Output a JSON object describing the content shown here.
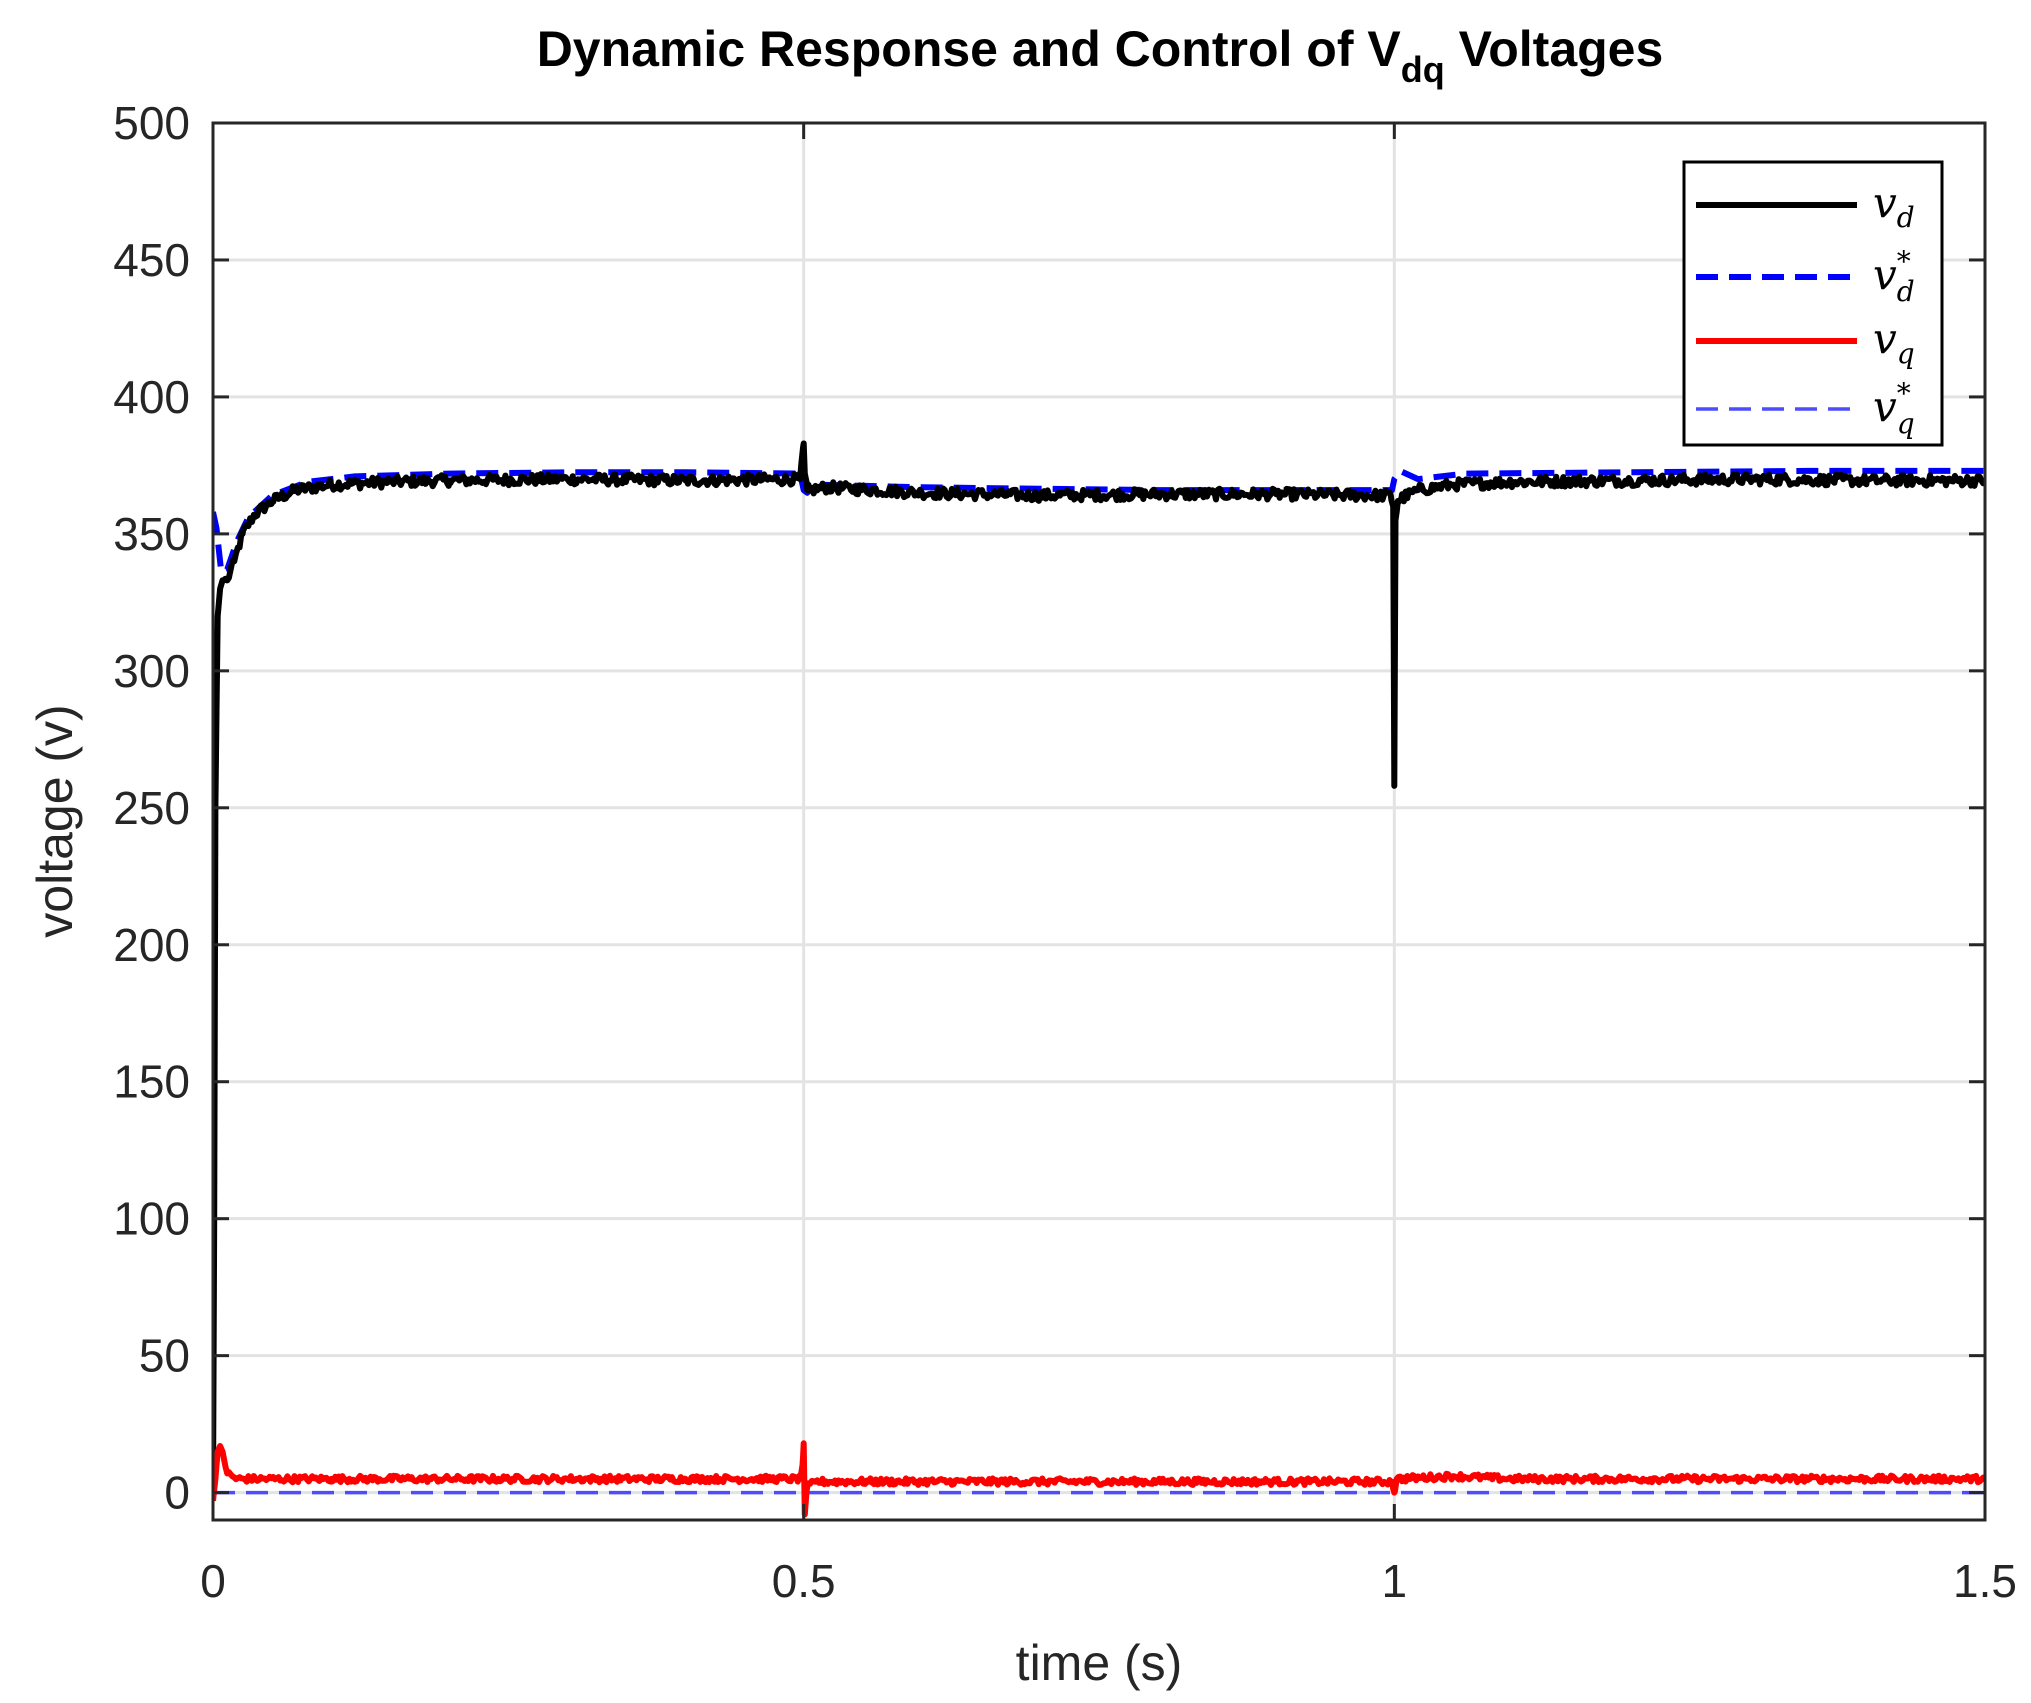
{
  "chart_data": {
    "type": "line",
    "title": {
      "main": "Dynamic Response and Control of V",
      "subscript": "dq",
      "suffix": " Voltages"
    },
    "xlabel": "time (s)",
    "ylabel": "voltage (v)",
    "xlim": [
      0,
      1.5
    ],
    "ylim": [
      -10,
      500
    ],
    "xticks": [
      0,
      0.5,
      1,
      1.5
    ],
    "xtick_labels": [
      "0",
      "0.5",
      "1",
      "1.5"
    ],
    "yticks": [
      0,
      50,
      100,
      150,
      200,
      250,
      300,
      350,
      400,
      450,
      500
    ],
    "ytick_labels": [
      "0",
      "50",
      "100",
      "150",
      "200",
      "250",
      "300",
      "350",
      "400",
      "450",
      "500"
    ],
    "grid": true,
    "legend_position": "top-right",
    "series": [
      {
        "key": "vd",
        "name": "v",
        "name_sub": "d",
        "name_sup": "",
        "color": "#000000",
        "style": "solid",
        "noise": 2.0,
        "x": [
          0,
          0.001,
          0.002,
          0.004,
          0.006,
          0.008,
          0.012,
          0.018,
          0.025,
          0.035,
          0.05,
          0.07,
          0.1,
          0.15,
          0.2,
          0.3,
          0.4,
          0.497,
          0.5,
          0.501,
          0.503,
          0.505,
          0.52,
          0.6,
          0.7,
          0.8,
          0.9,
          0.997,
          0.999,
          1.0,
          1.001,
          1.003,
          1.006,
          1.02,
          1.05,
          1.1,
          1.2,
          1.3,
          1.4,
          1.5
        ],
        "y": [
          0,
          100,
          250,
          320,
          330,
          333,
          333,
          340,
          350,
          357,
          362,
          366,
          368,
          369,
          369.5,
          370,
          369.5,
          370,
          383,
          372,
          366,
          366,
          367,
          365,
          364,
          364.5,
          364.5,
          364,
          360,
          258,
          355,
          362,
          363,
          366,
          368,
          369,
          369.5,
          370,
          369.5,
          369.5
        ]
      },
      {
        "key": "vd_ref",
        "name": "v",
        "name_sub": "d",
        "name_sup": "*",
        "color": "#0000ff",
        "style": "dashed",
        "noise": 0,
        "x": [
          0,
          0.003,
          0.007,
          0.012,
          0.02,
          0.03,
          0.05,
          0.08,
          0.12,
          0.2,
          0.3,
          0.4,
          0.497,
          0.5,
          0.503,
          0.51,
          0.6,
          0.7,
          0.8,
          0.9,
          0.998,
          1.0,
          1.005,
          1.02,
          1.06,
          1.2,
          1.35,
          1.5
        ],
        "y": [
          358,
          352,
          336,
          337,
          347,
          356,
          364,
          369,
          371,
          372,
          372.5,
          372.5,
          372,
          366,
          365,
          368,
          367,
          366.5,
          366,
          366,
          366,
          370,
          373,
          370,
          372,
          372.5,
          373,
          373
        ]
      },
      {
        "key": "vq",
        "name": "v",
        "name_sub": "q",
        "name_sup": "",
        "color": "#ff0000",
        "style": "solid",
        "noise": 1.2,
        "x": [
          0,
          0.002,
          0.004,
          0.006,
          0.008,
          0.012,
          0.02,
          0.04,
          0.1,
          0.2,
          0.3,
          0.4,
          0.497,
          0.499,
          0.5,
          0.501,
          0.503,
          0.51,
          0.6,
          0.7,
          0.8,
          0.9,
          0.998,
          1.0,
          1.002,
          1.05,
          1.1,
          1.2,
          1.3,
          1.4,
          1.5
        ],
        "y": [
          -3,
          5,
          15,
          17,
          15,
          7,
          5,
          5,
          5,
          5,
          5,
          5,
          5,
          10,
          18,
          -8,
          2,
          4,
          4,
          4,
          4,
          4,
          4,
          0,
          5,
          6,
          5,
          5,
          5,
          5,
          5
        ]
      },
      {
        "key": "vq_ref",
        "name": "v",
        "name_sub": "q",
        "name_sup": "*",
        "color": "#4d4dff",
        "style": "dashed-thin",
        "noise": 0,
        "x": [
          0,
          1.5
        ],
        "y": [
          0,
          0
        ]
      }
    ]
  }
}
